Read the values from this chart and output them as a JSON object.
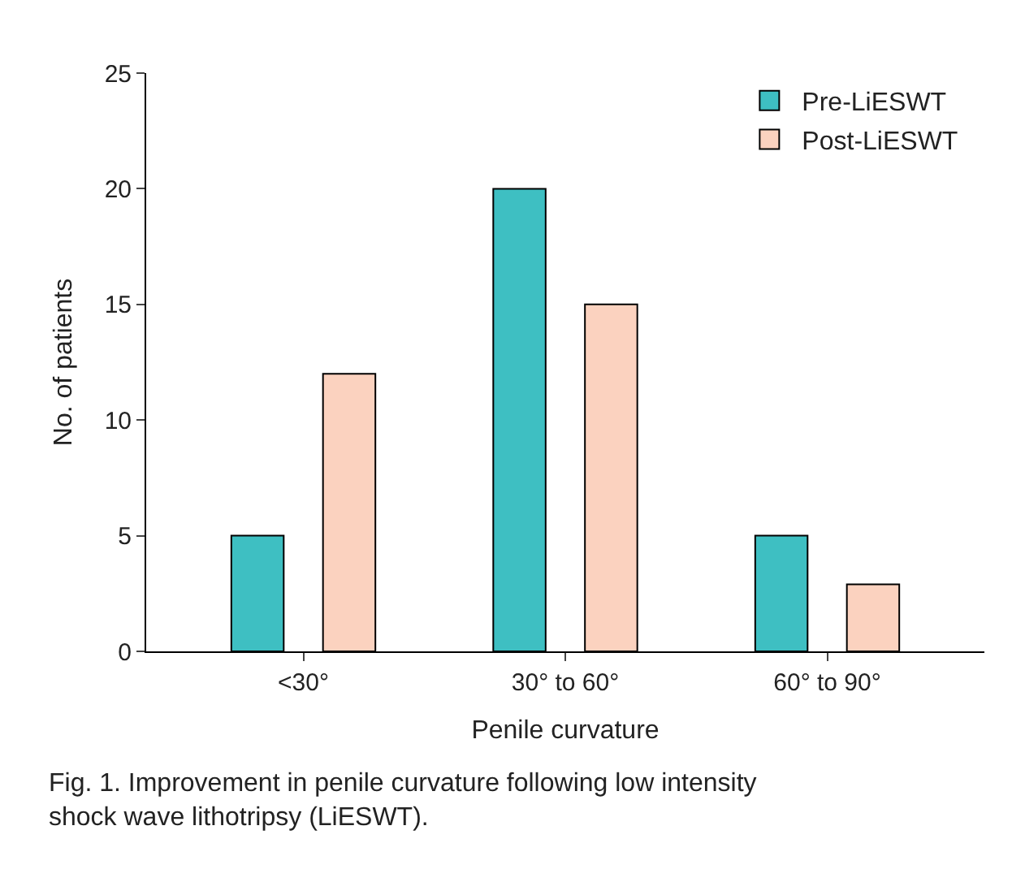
{
  "chart_data": {
    "type": "bar",
    "xlabel": "Penile curvature",
    "ylabel": "No. of patients",
    "categories": [
      "<30°",
      "30° to 60°",
      "60° to 90°"
    ],
    "series": [
      {
        "name": "Pre-LiESWT",
        "color": "#3ebfc2",
        "values": [
          5,
          20,
          5
        ]
      },
      {
        "name": "Post-LiESWT",
        "color": "#fbd2bf",
        "values": [
          12,
          15,
          2.9
        ]
      }
    ],
    "ylim": [
      0,
      25
    ],
    "yticks": [
      0,
      5,
      10,
      15,
      20,
      25
    ],
    "legend": "top right",
    "annotations": [
      "Fig. 1. Improvement in penile curvature following low intensity shock wave lithotripsy (LiESWT)."
    ]
  }
}
